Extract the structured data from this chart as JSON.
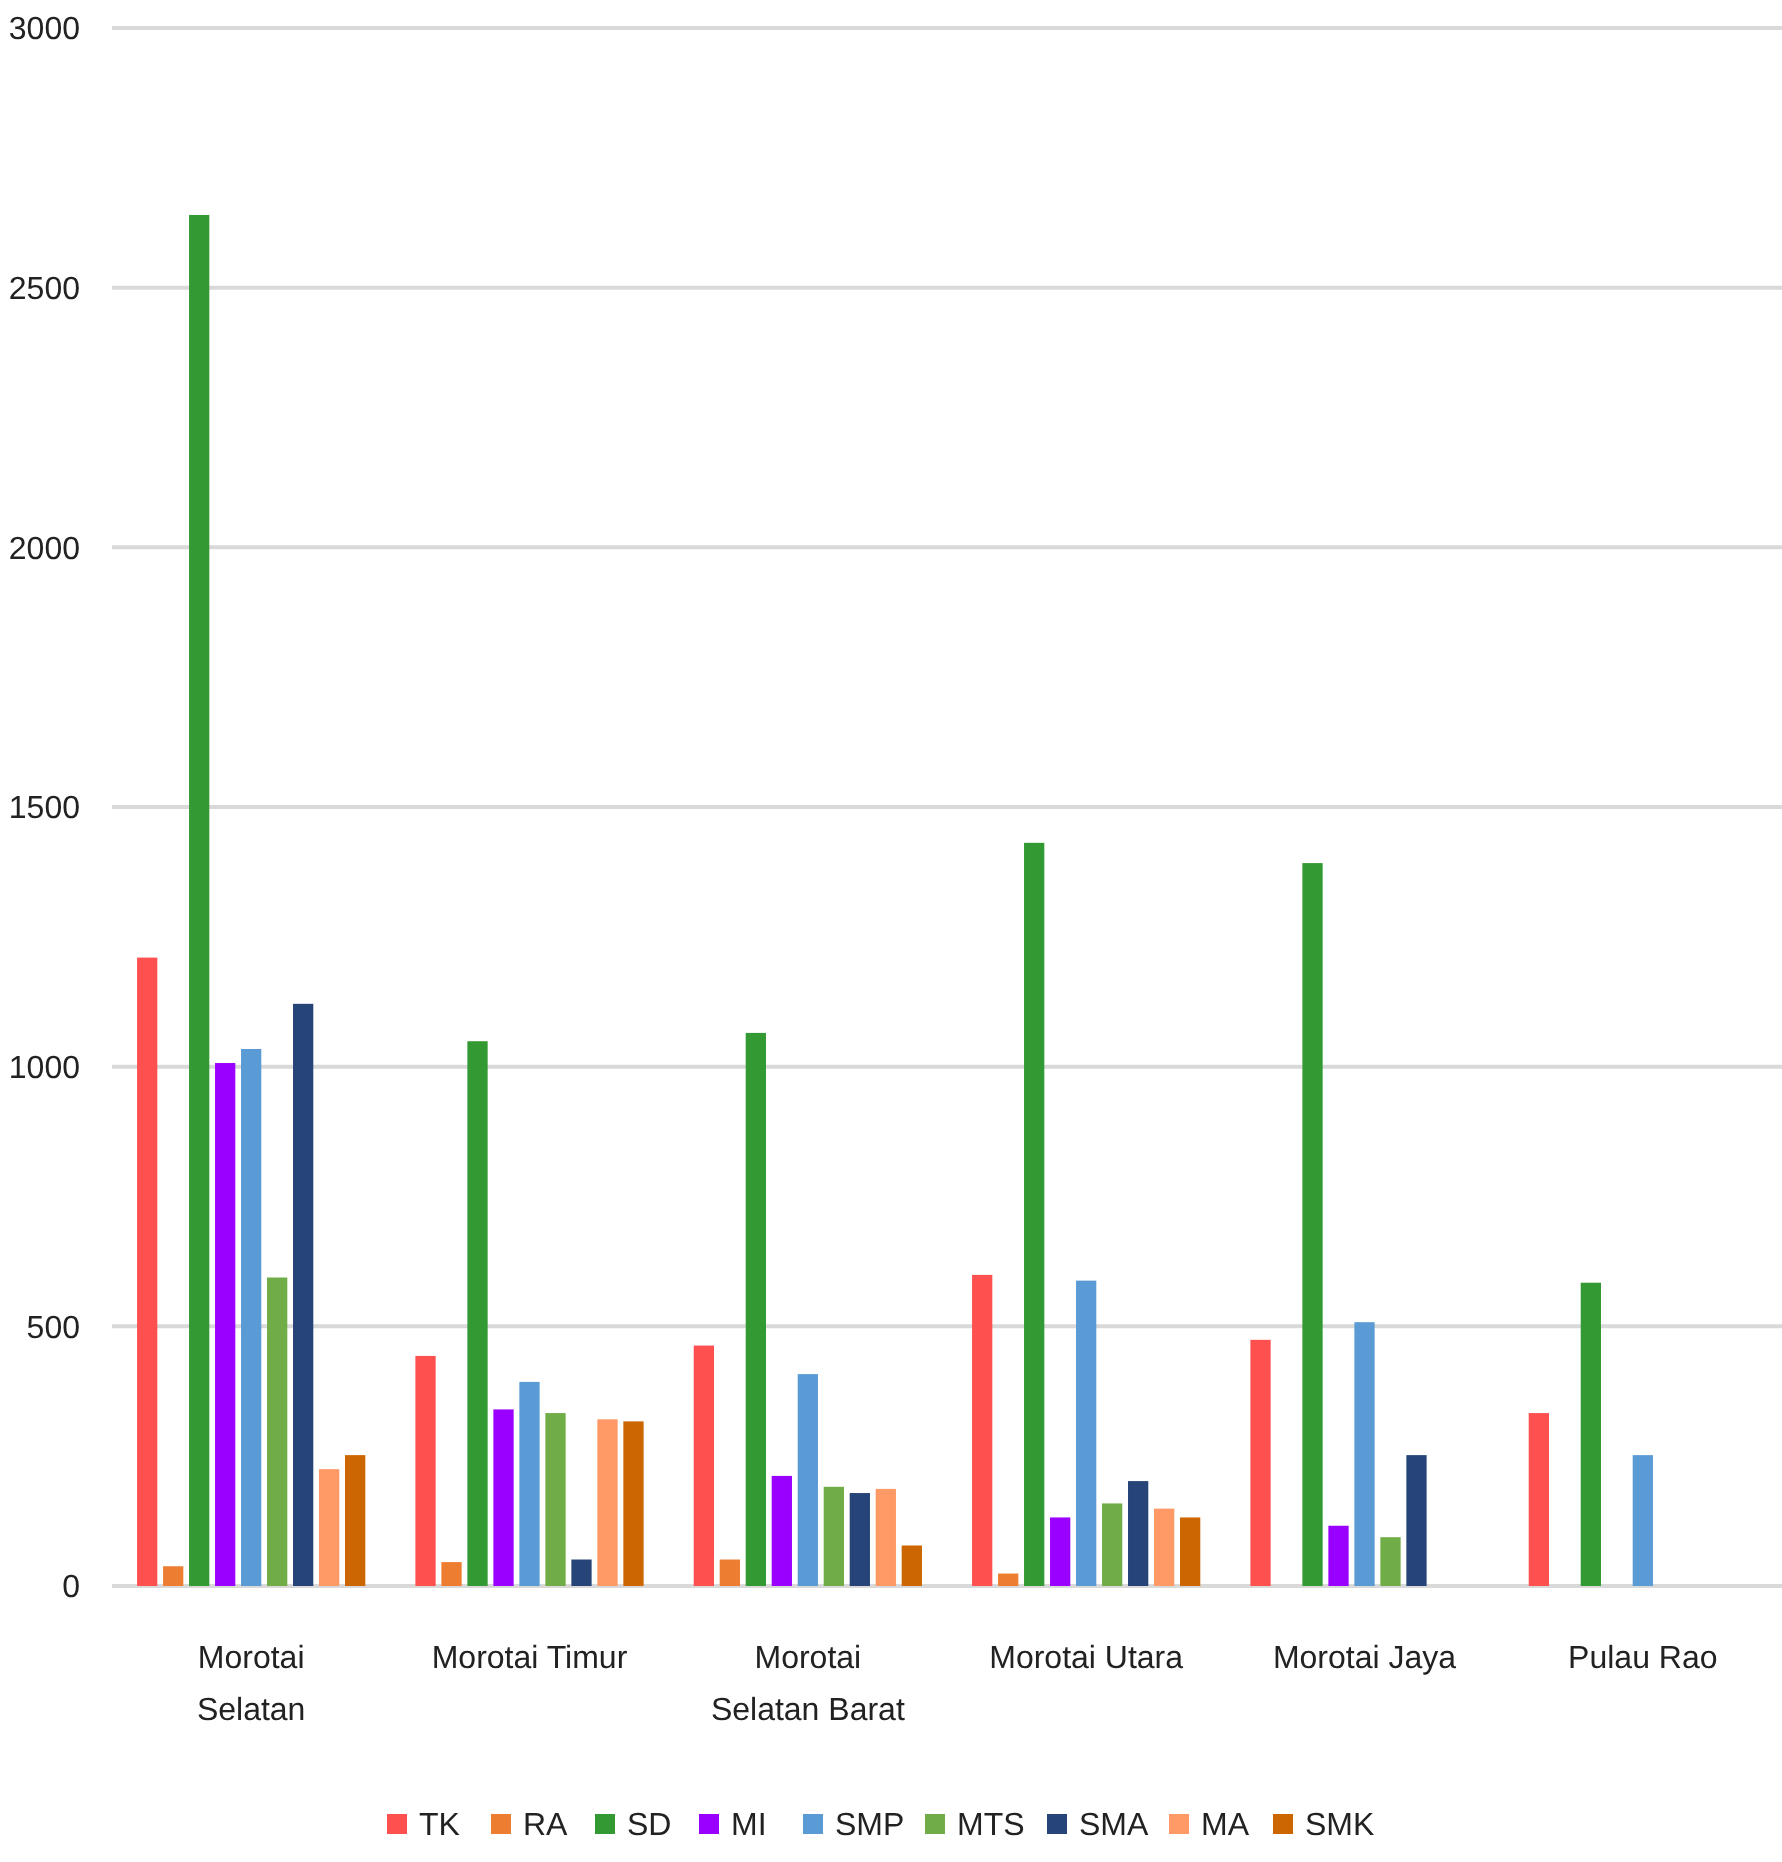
{
  "chart_data": {
    "type": "bar",
    "categories": [
      "Morotai Selatan",
      "Morotai Timur",
      "Morotai Selatan Barat",
      "Morotai Utara",
      "Morotai Jaya",
      "Pulau Rao"
    ],
    "series": [
      {
        "name": "TK",
        "color": "#ff5050",
        "values": [
          1210,
          443,
          463,
          599,
          474,
          333
        ]
      },
      {
        "name": "RA",
        "color": "#ed7d31",
        "values": [
          38,
          46,
          51,
          24,
          null,
          null
        ]
      },
      {
        "name": "SD",
        "color": "#339933",
        "values": [
          2640,
          1049,
          1065,
          1431,
          1392,
          584
        ]
      },
      {
        "name": "MI",
        "color": "#9900ff",
        "values": [
          1007,
          340,
          212,
          132,
          116,
          null
        ]
      },
      {
        "name": "SMP",
        "color": "#5b9bd5",
        "values": [
          1034,
          393,
          408,
          588,
          508,
          252
        ]
      },
      {
        "name": "MTS",
        "color": "#70ad47",
        "values": [
          594,
          333,
          191,
          159,
          94,
          null
        ]
      },
      {
        "name": "SMA",
        "color": "#264478",
        "values": [
          1121,
          51,
          179,
          202,
          252,
          null
        ]
      },
      {
        "name": "MA",
        "color": "#ff9966",
        "values": [
          225,
          321,
          187,
          149,
          null,
          null
        ]
      },
      {
        "name": "SMK",
        "color": "#cc6600",
        "values": [
          252,
          317,
          78,
          132,
          null,
          null
        ]
      }
    ],
    "ylim": [
      0,
      3000
    ],
    "yticks": [
      0,
      500,
      1000,
      1500,
      2000,
      2500,
      3000
    ],
    "grid": "y",
    "legend": "bottom"
  }
}
